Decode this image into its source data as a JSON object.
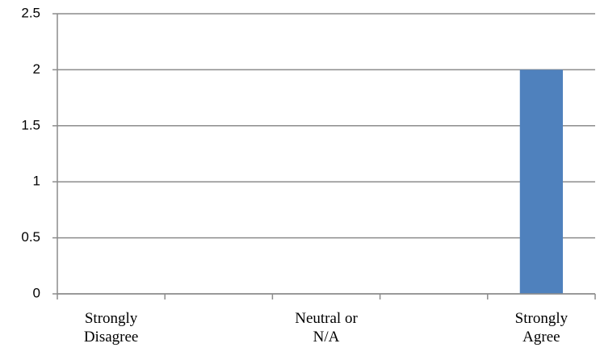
{
  "chart_data": {
    "type": "bar",
    "categories": [
      "Strongly Disagree",
      null,
      "Neutral or N/A",
      null,
      "Strongly Agree"
    ],
    "values": [
      0,
      0,
      0,
      0,
      2
    ],
    "color": "#4f81bd",
    "ylim": [
      0,
      2.5
    ],
    "yticks": [
      0,
      0.5,
      1,
      1.5,
      2,
      2.5
    ],
    "grid": true
  }
}
